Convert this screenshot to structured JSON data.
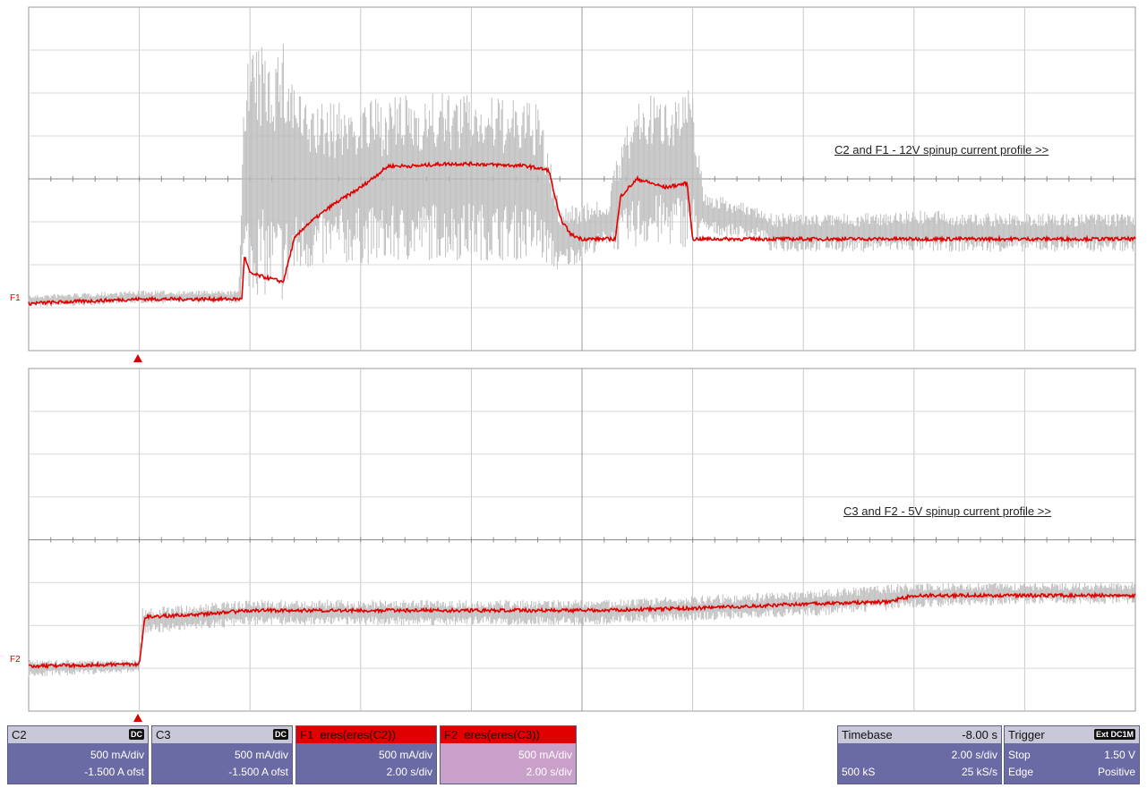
{
  "chart_data": [
    {
      "type": "line",
      "title": "C2 and F1 - 12V spinup current profile >>",
      "trace_label": "F1",
      "xlabel": "",
      "ylabel": "",
      "x_unit": "s",
      "xlim": [
        -2,
        18
      ],
      "ylim_div": [
        -4,
        4
      ],
      "grid": true,
      "series": [
        {
          "name": "C2",
          "color": "#bdbdbd",
          "kind": "noisy_band",
          "x": [
            -2,
            0,
            1.8,
            1.9,
            2.6,
            3.0,
            3.6,
            4.5,
            5.2,
            6.0,
            7.0,
            7.2,
            7.6,
            8.5,
            8.6,
            9.0,
            10.0,
            10.2,
            11.3,
            11.4,
            12.0,
            13.0,
            14.0,
            15.0,
            16.0,
            18.0
          ],
          "low": [
            -3.0,
            -2.9,
            -2.9,
            -2.6,
            -2.9,
            -2.2,
            -2.0,
            -2.0,
            -1.9,
            -1.9,
            -1.9,
            -1.9,
            -2.2,
            -1.5,
            -1.7,
            -1.6,
            -1.6,
            -1.3,
            -1.4,
            -1.7,
            -1.7,
            -1.7,
            -1.7,
            -1.7,
            -1.7,
            -1.7
          ],
          "high": [
            -2.7,
            -2.6,
            -2.6,
            3.0,
            3.2,
            1.8,
            1.8,
            1.9,
            2.0,
            2.0,
            1.8,
            1.8,
            -0.6,
            -0.5,
            0.5,
            1.9,
            2.1,
            -0.3,
            -0.7,
            -0.8,
            -0.8,
            -0.8,
            -0.7,
            -0.8,
            -0.8,
            -0.8
          ]
        },
        {
          "name": "F1",
          "color": "#e00000",
          "x": [
            -2,
            0,
            1.85,
            1.9,
            2.0,
            2.6,
            2.7,
            2.8,
            3.0,
            3.5,
            4.0,
            4.5,
            5.0,
            5.5,
            6.0,
            7.0,
            7.4,
            7.6,
            7.8,
            8.0,
            8.2,
            8.6,
            8.7,
            9.0,
            9.5,
            9.9,
            10.0,
            10.1,
            12.0,
            12.2,
            14.0,
            14.1,
            18.0
          ],
          "y": [
            -2.9,
            -2.8,
            -2.8,
            -1.8,
            -2.2,
            -2.4,
            -1.9,
            -1.4,
            -1.1,
            -0.6,
            -0.2,
            0.3,
            0.3,
            0.35,
            0.35,
            0.3,
            0.2,
            -0.9,
            -1.3,
            -1.4,
            -1.4,
            -1.4,
            -0.4,
            0.0,
            -0.2,
            -0.1,
            -1.4,
            -1.4,
            -1.4,
            -1.4,
            -1.4,
            -1.4,
            -1.4
          ]
        }
      ]
    },
    {
      "type": "line",
      "title": "C3 and F2 - 5V spinup current profile >>",
      "trace_label": "F2",
      "xlabel": "",
      "ylabel": "",
      "x_unit": "s",
      "xlim": [
        -2,
        18
      ],
      "ylim_div": [
        -4,
        4
      ],
      "grid": true,
      "series": [
        {
          "name": "C3",
          "color": "#bdbdbd",
          "kind": "noisy_band",
          "x": [
            -2,
            0,
            0.05,
            1,
            2,
            4,
            6,
            8,
            10,
            12,
            14,
            16,
            18
          ],
          "low": [
            -3.2,
            -3.1,
            -2.2,
            -2.1,
            -2.0,
            -2.0,
            -2.0,
            -2.0,
            -1.9,
            -1.8,
            -1.6,
            -1.5,
            -1.5
          ],
          "high": [
            -2.8,
            -2.8,
            -1.6,
            -1.5,
            -1.4,
            -1.4,
            -1.4,
            -1.4,
            -1.3,
            -1.2,
            -1.0,
            -1.0,
            -1.0
          ]
        },
        {
          "name": "F2",
          "color": "#e00000",
          "x": [
            -2,
            0,
            0.1,
            1,
            2,
            4,
            6,
            8,
            10,
            12,
            13.5,
            14,
            16,
            18
          ],
          "y": [
            -2.95,
            -2.9,
            -1.8,
            -1.75,
            -1.65,
            -1.65,
            -1.65,
            -1.65,
            -1.6,
            -1.5,
            -1.45,
            -1.3,
            -1.3,
            -1.3
          ]
        }
      ]
    }
  ],
  "annotations": {
    "top": "C2 and F1 - 12V spinup current profile >>",
    "bottom": "C3 and F2 - 5V spinup current profile >>",
    "f1_tag": "F1",
    "f2_tag": "F2"
  },
  "panels": {
    "c2": {
      "name": "C2",
      "coupling": "DC",
      "scale": "500 mA/div",
      "offset": "-1.500 A ofst"
    },
    "c3": {
      "name": "C3",
      "coupling": "DC",
      "scale": "500 mA/div",
      "offset": "-1.500 A ofst"
    },
    "f1": {
      "name": "F1",
      "func": "eres(eres(C2))",
      "scale": "500 mA/div",
      "time": "2.00 s/div"
    },
    "f2": {
      "name": "F2",
      "func": "eres(eres(C3))",
      "scale": "500 mA/div",
      "time": "2.00 s/div"
    },
    "timebase": {
      "label": "Timebase",
      "delay": "-8.00 s",
      "time": "2.00 s/div",
      "samples": "500 kS",
      "rate": "25 kS/s"
    },
    "trigger": {
      "label": "Trigger",
      "badge": "Ext DC1M",
      "mode": "Stop",
      "level": "1.50 V",
      "type": "Edge",
      "slope": "Positive"
    }
  }
}
